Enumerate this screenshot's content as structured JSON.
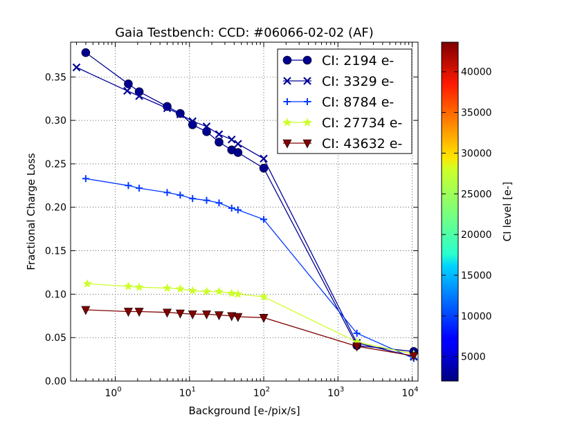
{
  "chart_data": {
    "type": "line",
    "title": "Gaia Testbench: CCD: #06066-02-02 (AF)",
    "xlabel": "Background [e-/pix/s]",
    "ylabel": "Fractional Charge Loss",
    "xscale": "log",
    "xlim": [
      0.25,
      12000
    ],
    "ylim": [
      0,
      0.39
    ],
    "yticks": [
      "0.00",
      "0.05",
      "0.10",
      "0.15",
      "0.20",
      "0.25",
      "0.30",
      "0.35"
    ],
    "xticks": [
      {
        "base": "10",
        "exp": "0"
      },
      {
        "base": "10",
        "exp": "1"
      },
      {
        "base": "10",
        "exp": "2"
      },
      {
        "base": "10",
        "exp": "3"
      },
      {
        "base": "10",
        "exp": "4"
      }
    ],
    "grid": true,
    "legend_position": "top-right",
    "series": [
      {
        "name": "CI: 2194 e-",
        "color": "#00008f",
        "marker": "circle",
        "x": [
          0.4,
          1.5,
          2.1,
          5,
          7.5,
          11,
          17,
          25,
          37,
          45,
          100,
          1800,
          10500
        ],
        "y": [
          0.378,
          0.342,
          0.333,
          0.316,
          0.308,
          0.295,
          0.287,
          0.275,
          0.266,
          0.263,
          0.245,
          0.041,
          0.034
        ]
      },
      {
        "name": "CI: 3329 e-",
        "color": "#000096",
        "marker": "x",
        "x": [
          0.3,
          1.45,
          2.1,
          5,
          7.5,
          11,
          17,
          25,
          37,
          45,
          100,
          1800,
          10500
        ],
        "y": [
          0.361,
          0.334,
          0.328,
          0.314,
          0.307,
          0.299,
          0.293,
          0.284,
          0.278,
          0.273,
          0.256,
          0.044,
          0.028
        ]
      },
      {
        "name": "CI: 8784 e-",
        "color": "#0038ff",
        "marker": "plus",
        "x": [
          0.4,
          1.5,
          2.1,
          5,
          7.5,
          11,
          17,
          25,
          37,
          45,
          100,
          1800,
          10500
        ],
        "y": [
          0.233,
          0.225,
          0.222,
          0.217,
          0.214,
          0.21,
          0.208,
          0.205,
          0.199,
          0.197,
          0.186,
          0.055,
          0.026
        ]
      },
      {
        "name": "CI: 27734 e-",
        "color": "#ccff29",
        "marker": "star",
        "x": [
          0.42,
          1.5,
          2.1,
          5,
          7.5,
          11,
          17,
          25,
          37,
          45,
          100,
          1800,
          10500
        ],
        "y": [
          0.112,
          0.109,
          0.108,
          0.107,
          0.106,
          0.104,
          0.103,
          0.103,
          0.101,
          0.1,
          0.097,
          0.045,
          0.031
        ]
      },
      {
        "name": "CI: 43632 e-",
        "color": "#800000",
        "marker": "triangle-down",
        "x": [
          0.4,
          1.5,
          2.1,
          5,
          7.5,
          11,
          17,
          25,
          37,
          45,
          100,
          1800,
          10500
        ],
        "y": [
          0.082,
          0.08,
          0.08,
          0.079,
          0.078,
          0.077,
          0.077,
          0.076,
          0.075,
          0.074,
          0.073,
          0.04,
          0.029
        ]
      }
    ],
    "colorbar": {
      "label": "CI level [e-]",
      "range": [
        2000,
        43632
      ],
      "colormap": "jet",
      "ticks": [
        "5000",
        "10000",
        "15000",
        "20000",
        "25000",
        "30000",
        "35000",
        "40000"
      ],
      "tick_values": [
        5000,
        10000,
        15000,
        20000,
        25000,
        30000,
        35000,
        40000
      ]
    }
  }
}
